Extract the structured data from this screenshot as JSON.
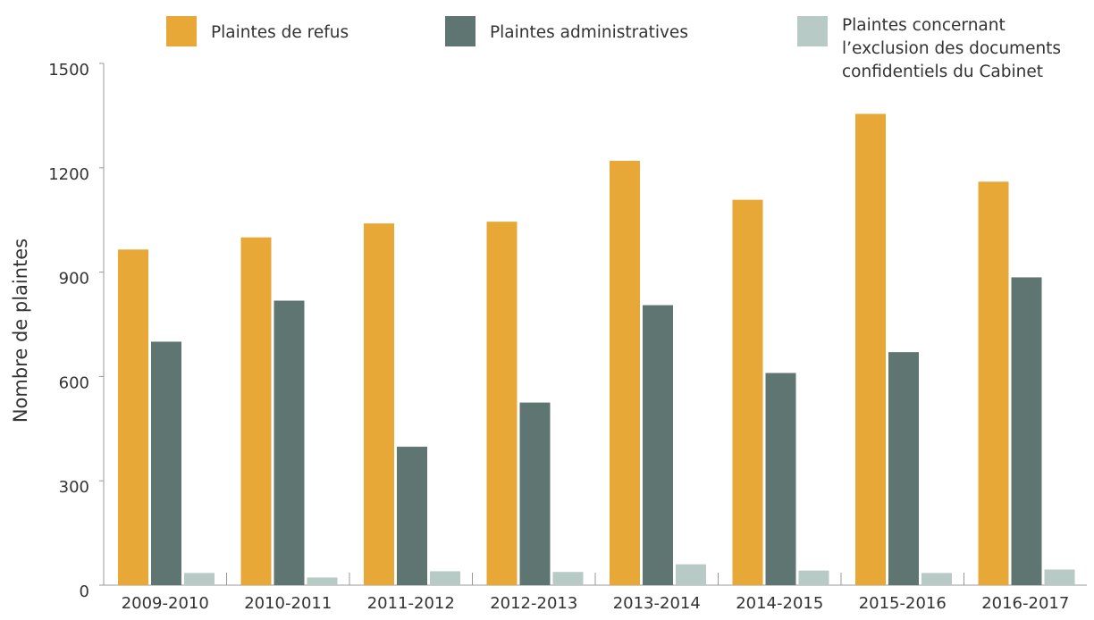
{
  "chart_data": {
    "type": "bar",
    "ylabel": "Nombre de plaintes",
    "xlabel": "",
    "ylim": [
      0,
      1500
    ],
    "yticks": [
      "0",
      "300",
      "600",
      "900",
      "1200",
      "1500"
    ],
    "grid": false,
    "legend_position": "top",
    "categories": [
      "2009-2010",
      "2010-2011",
      "2011-2012",
      "2012-2013",
      "2013-2014",
      "2014-2015",
      "2015-2016",
      "2016-2017"
    ],
    "series": [
      {
        "name": "Plaintes de refus",
        "color": "#e8a838",
        "values": [
          965,
          1000,
          1040,
          1045,
          1220,
          1108,
          1355,
          1160
        ]
      },
      {
        "name": "Plaintes administratives",
        "color": "#5f7571",
        "values": [
          700,
          818,
          398,
          525,
          805,
          610,
          670,
          885
        ]
      },
      {
        "name_lines": [
          "Plaintes concernant",
          "l’exclusion des documents",
          "confidentiels du Cabinet"
        ],
        "color": "#b8cac6",
        "values": [
          35,
          22,
          40,
          38,
          60,
          42,
          35,
          45
        ]
      }
    ]
  }
}
